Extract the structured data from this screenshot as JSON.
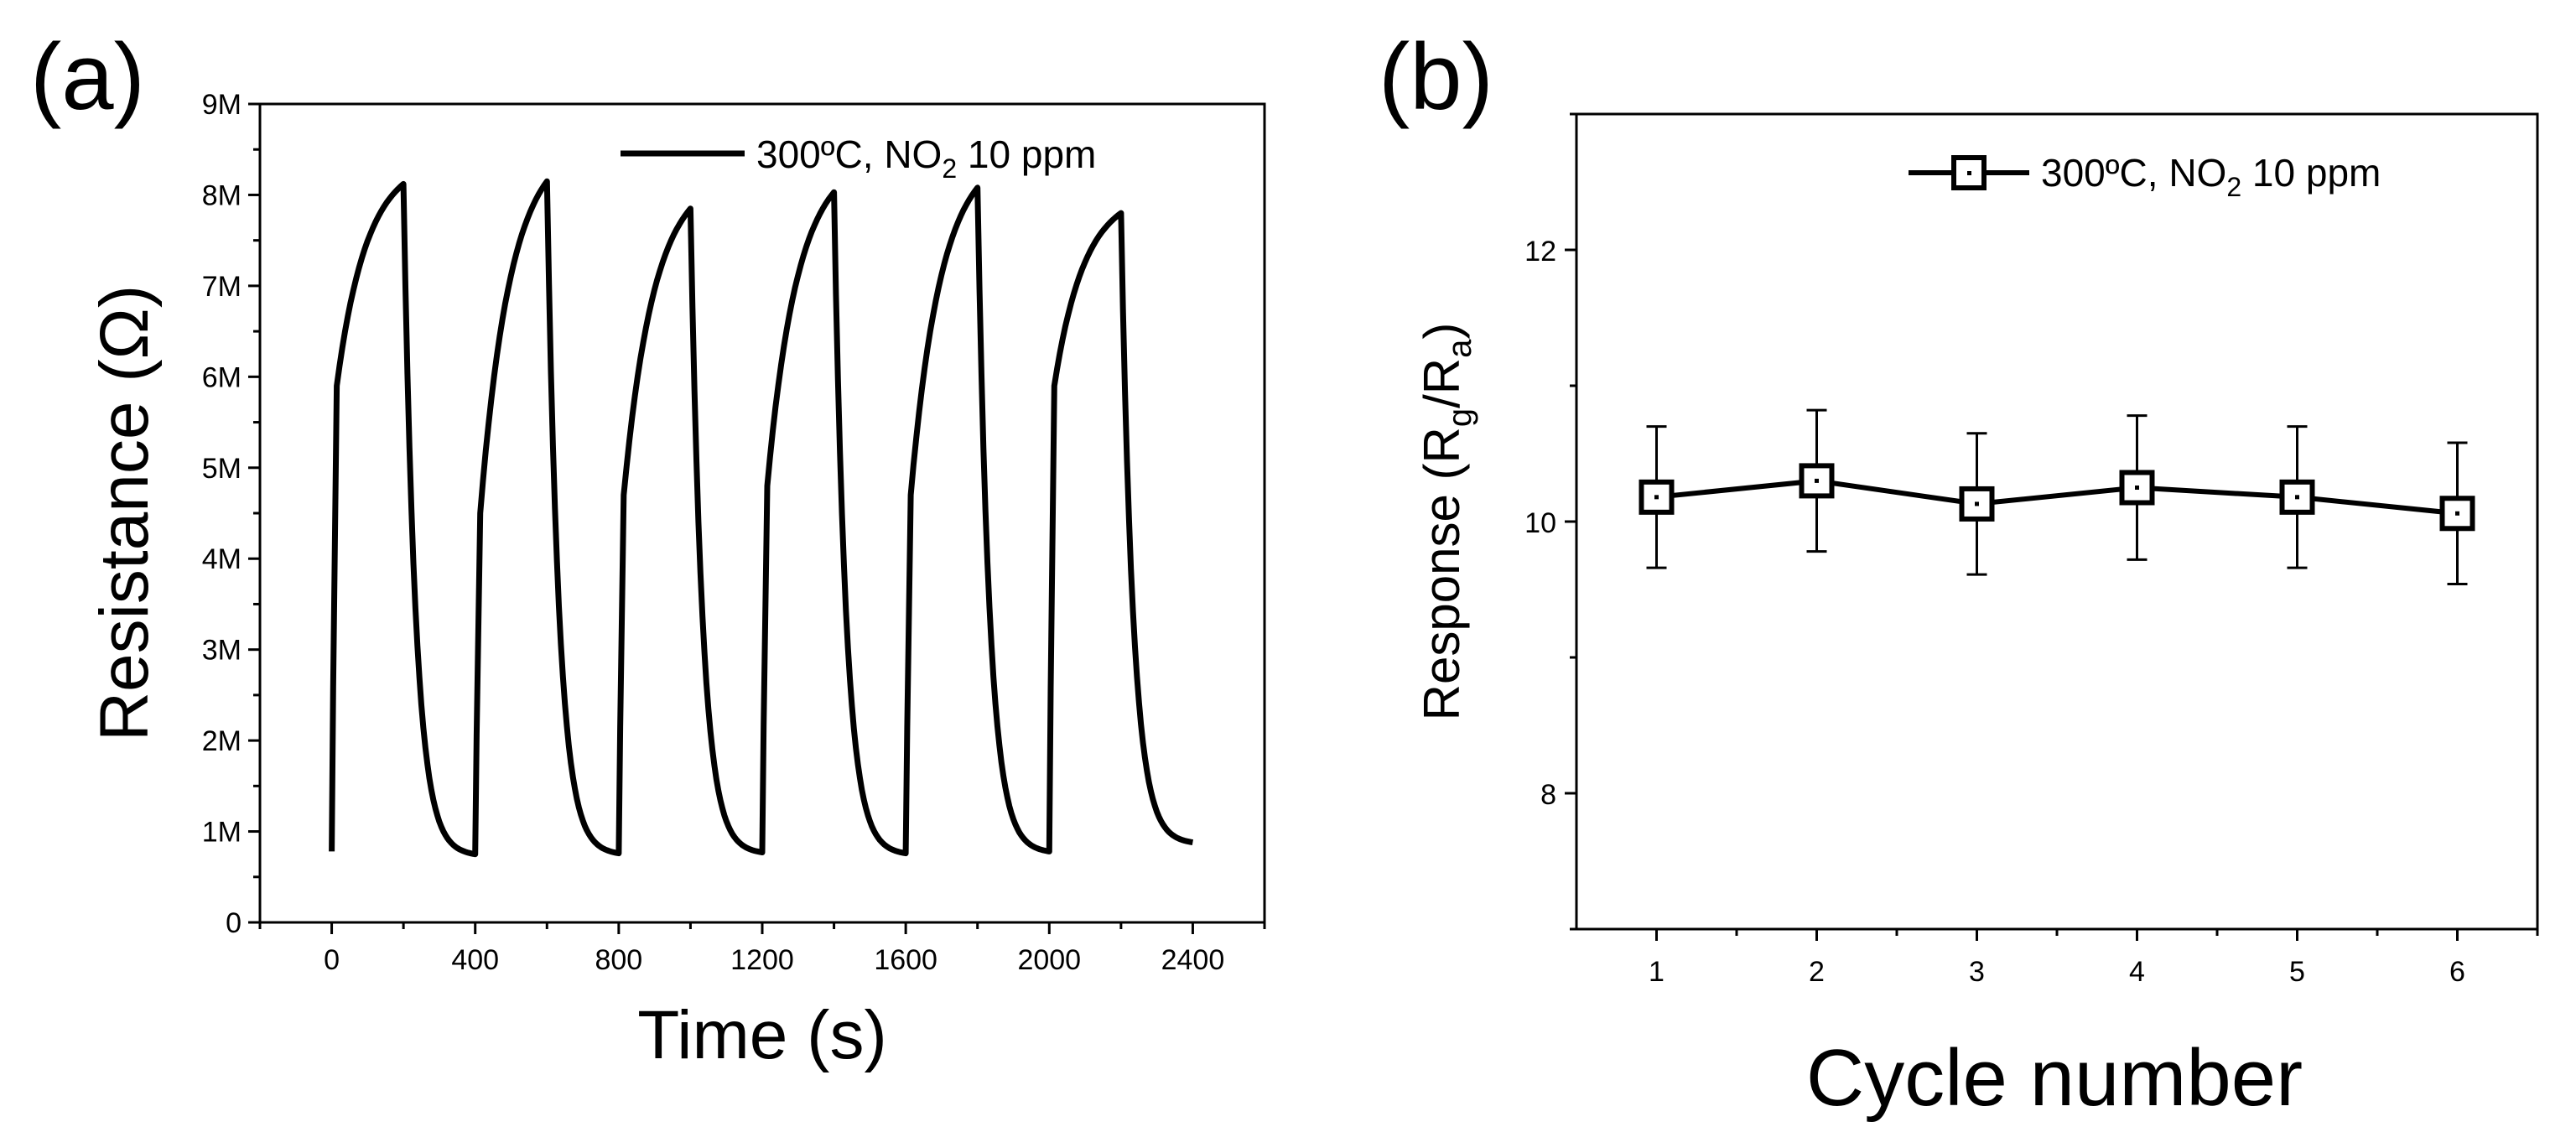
{
  "colors": {
    "line": "#000000",
    "background": "#ffffff"
  },
  "chart_data": [
    {
      "panel": "(a)",
      "type": "line",
      "title": "",
      "xlabel": "Time (s)",
      "ylabel": "Resistance (Ω)",
      "xlim": [
        -200,
        2600
      ],
      "ylim": [
        0,
        9000000
      ],
      "xticks": [
        0,
        400,
        800,
        1200,
        1600,
        2000,
        2400
      ],
      "xtick_labels": [
        "0",
        "400",
        "800",
        "1200",
        "1600",
        "2000",
        "2400"
      ],
      "yticks": [
        0,
        1000000,
        2000000,
        3000000,
        4000000,
        5000000,
        6000000,
        7000000,
        8000000,
        9000000
      ],
      "ytick_labels": [
        "0",
        "1M",
        "2M",
        "3M",
        "4M",
        "5M",
        "6M",
        "7M",
        "8M",
        "9M"
      ],
      "legend": {
        "label": "300ºC, NO",
        "label_sub": "2",
        "label_tail": " 10 ppm",
        "placement": "top-right"
      },
      "series": [
        {
          "name": "300ºC, NO2 10 ppm",
          "cycles": [
            {
              "on": 0,
              "off": 200,
              "base": 780000,
              "plateau_jump": 5900000,
              "peak": 8120000,
              "end": 750000
            },
            {
              "on": 400,
              "off": 600,
              "base": 750000,
              "plateau_jump": 4500000,
              "peak": 8150000,
              "end": 760000
            },
            {
              "on": 800,
              "off": 1000,
              "base": 760000,
              "plateau_jump": 4700000,
              "peak": 7850000,
              "end": 770000
            },
            {
              "on": 1200,
              "off": 1400,
              "base": 770000,
              "plateau_jump": 4800000,
              "peak": 8030000,
              "end": 760000
            },
            {
              "on": 1600,
              "off": 1800,
              "base": 760000,
              "plateau_jump": 4700000,
              "peak": 8080000,
              "end": 780000
            },
            {
              "on": 2000,
              "off": 2200,
              "base": 780000,
              "plateau_jump": 5900000,
              "peak": 7800000,
              "end": 880000
            }
          ],
          "x_end": 2400
        }
      ]
    },
    {
      "panel": "(b)",
      "type": "scatter",
      "title": "",
      "xlabel": "Cycle number",
      "ylabel": "Response (R",
      "ylabel_sub_g": "g",
      "ylabel_mid": "/R",
      "ylabel_sub_a": "a",
      "ylabel_tail": ")",
      "xlim": [
        0.5,
        6.5
      ],
      "ylim": [
        7,
        13
      ],
      "xticks": [
        1,
        2,
        3,
        4,
        5,
        6
      ],
      "xtick_labels": [
        "1",
        "2",
        "3",
        "4",
        "5",
        "6"
      ],
      "yticks": [
        8,
        10,
        12
      ],
      "ytick_labels": [
        "8",
        "10",
        "12"
      ],
      "legend": {
        "label": "300ºC, NO",
        "label_sub": "2",
        "label_tail": " 10 ppm",
        "placement": "top-right"
      },
      "series": [
        {
          "name": "300ºC, NO2 10 ppm",
          "x": [
            1,
            2,
            3,
            4,
            5,
            6
          ],
          "y": [
            10.18,
            10.3,
            10.13,
            10.25,
            10.18,
            10.06
          ],
          "err": [
            0.52,
            0.52,
            0.52,
            0.53,
            0.52,
            0.52
          ]
        }
      ]
    }
  ]
}
